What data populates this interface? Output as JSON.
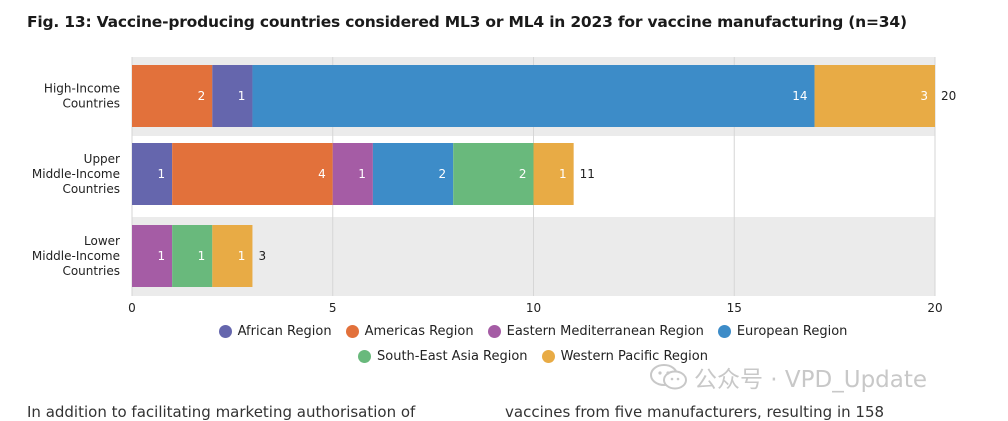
{
  "figure": {
    "title": "Fig. 13: Vaccine-producing countries considered ML3 or ML4 in 2023 for vaccine manufacturing (n=34)"
  },
  "chart_data": {
    "type": "bar",
    "orientation": "horizontal",
    "stacked": true,
    "title": "Fig. 13: Vaccine-producing countries considered ML3 or ML4 in 2023 for vaccine manufacturing (n=34)",
    "xlabel": "",
    "ylabel": "",
    "xlim": [
      0,
      20
    ],
    "xticks": [
      0,
      5,
      10,
      15,
      20
    ],
    "grid": true,
    "legend_position": "bottom",
    "categories": [
      [
        "High-Income",
        "Countries"
      ],
      [
        "Upper",
        "Middle-Income",
        "Countries"
      ],
      [
        "Lower",
        "Middle-Income",
        "Countries"
      ]
    ],
    "series": [
      {
        "name": "African Region",
        "color": "#6566ad",
        "values": [
          1,
          1,
          0
        ]
      },
      {
        "name": "Americas Region",
        "color": "#e2713b",
        "values": [
          2,
          4,
          0
        ]
      },
      {
        "name": "Eastern Mediterranean Region",
        "color": "#a55ca5",
        "values": [
          0,
          1,
          1
        ]
      },
      {
        "name": "European Region",
        "color": "#3d8cc8",
        "values": [
          14,
          2,
          0
        ]
      },
      {
        "name": "South-East Asia Region",
        "color": "#69b97c",
        "values": [
          0,
          2,
          1
        ]
      },
      {
        "name": "Western Pacific Region",
        "color": "#e8ab45",
        "values": [
          3,
          1,
          1
        ]
      }
    ],
    "stack_order": [
      [
        "Americas Region",
        "African Region",
        "European Region",
        "Western Pacific Region"
      ],
      [
        "African Region",
        "Americas Region",
        "Eastern Mediterranean Region",
        "European Region",
        "South-East Asia Region",
        "Western Pacific Region"
      ],
      [
        "Eastern Mediterranean Region",
        "South-East Asia Region",
        "Western Pacific Region"
      ]
    ],
    "totals": [
      20,
      11,
      3
    ]
  },
  "watermark": {
    "text": "公众号 · VPD_Update"
  },
  "body_text": {
    "left": "In addition to facilitating marketing authorisation of",
    "right": "vaccines from five manufacturers, resulting in 158"
  },
  "colors": {
    "band": "#ebebeb",
    "grid": "#d6d6d6"
  }
}
